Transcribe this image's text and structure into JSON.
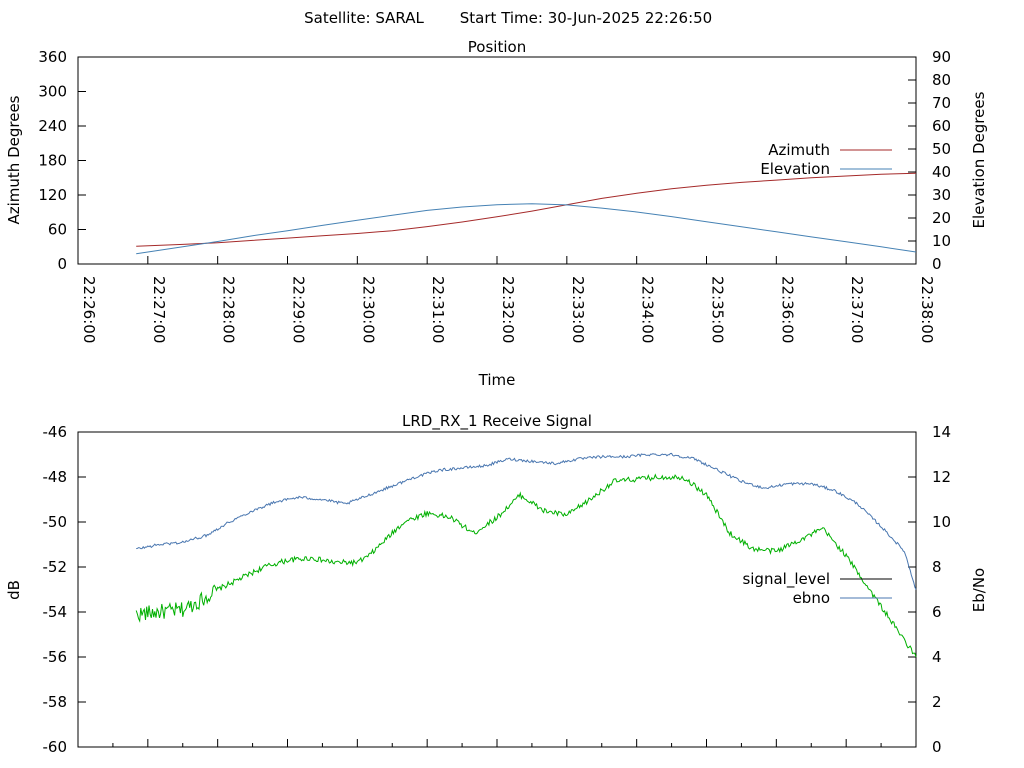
{
  "header": {
    "satellite": "Satellite: SARAL",
    "start_time": "Start Time: 30-Jun-2025 22:26:50"
  },
  "colors": {
    "azimuth": "#a52a2a",
    "elevation": "#4682b4",
    "signal_level": "#00b000",
    "ebno": "#4a77b0",
    "axis": "#000000"
  },
  "chart_data": [
    {
      "type": "line",
      "title": "Position",
      "xlabel": "Time",
      "ylabel": "Azimuth Degrees",
      "y2label": "Elevation Degrees",
      "xlim": [
        "22:26:00",
        "22:38:00"
      ],
      "ylim": [
        0,
        360
      ],
      "y2lim": [
        0,
        90
      ],
      "x_ticks": [
        "22:26:00",
        "22:27:00",
        "22:28:00",
        "22:29:00",
        "22:30:00",
        "22:31:00",
        "22:32:00",
        "22:33:00",
        "22:34:00",
        "22:35:00",
        "22:36:00",
        "22:37:00",
        "22:38:00"
      ],
      "y_ticks": [
        "0",
        "60",
        "120",
        "180",
        "240",
        "300",
        "360"
      ],
      "y2_ticks": [
        "0",
        "10",
        "20",
        "30",
        "40",
        "50",
        "60",
        "70",
        "80",
        "90"
      ],
      "legend_position": "right",
      "series": [
        {
          "name": "Azimuth",
          "axis": "y",
          "x": [
            "22:26:50",
            "22:27:30",
            "22:28:00",
            "22:28:30",
            "22:29:00",
            "22:29:30",
            "22:30:00",
            "22:30:30",
            "22:31:00",
            "22:31:30",
            "22:32:00",
            "22:32:30",
            "22:33:00",
            "22:33:30",
            "22:34:00",
            "22:34:30",
            "22:35:00",
            "22:35:30",
            "22:36:00",
            "22:36:30",
            "22:37:00",
            "22:37:30",
            "22:38:00"
          ],
          "values": [
            31,
            34,
            37,
            41,
            45,
            49,
            53,
            58,
            65,
            73,
            82,
            92,
            103,
            114,
            123,
            131,
            137,
            142,
            146,
            150,
            153,
            156,
            158
          ]
        },
        {
          "name": "Elevation",
          "axis": "y2",
          "x": [
            "22:26:50",
            "22:27:30",
            "22:28:00",
            "22:28:30",
            "22:29:00",
            "22:29:30",
            "22:30:00",
            "22:30:30",
            "22:31:00",
            "22:31:30",
            "22:32:00",
            "22:32:30",
            "22:33:00",
            "22:33:30",
            "22:34:00",
            "22:34:30",
            "22:35:00",
            "22:35:30",
            "22:36:00",
            "22:36:30",
            "22:37:00",
            "22:37:30",
            "22:38:00"
          ],
          "values": [
            4.5,
            7.5,
            9.8,
            12.3,
            14.5,
            16.8,
            19,
            21.2,
            23.3,
            24.8,
            25.8,
            26.2,
            25.7,
            24.3,
            22.6,
            20.6,
            18.4,
            16.2,
            14,
            11.8,
            9.7,
            7.5,
            5.2
          ]
        }
      ]
    },
    {
      "type": "line",
      "title": "LRD_RX_1 Receive Signal",
      "xlabel": "",
      "ylabel": "dB",
      "y2label": "Eb/No",
      "xlim": [
        "22:26:00",
        "22:38:00"
      ],
      "ylim": [
        -60,
        -46
      ],
      "y2lim": [
        0,
        14
      ],
      "y_ticks": [
        "-60",
        "-58",
        "-56",
        "-54",
        "-52",
        "-50",
        "-48",
        "-46"
      ],
      "y2_ticks": [
        "0",
        "2",
        "4",
        "6",
        "8",
        "10",
        "12",
        "14"
      ],
      "legend_position": "right",
      "series": [
        {
          "name": "signal_level",
          "axis": "y",
          "x": [
            "22:26:50",
            "22:27:10",
            "22:27:30",
            "22:27:45",
            "22:28:00",
            "22:28:20",
            "22:28:40",
            "22:29:00",
            "22:29:20",
            "22:29:40",
            "22:30:00",
            "22:30:10",
            "22:30:20",
            "22:30:40",
            "22:31:00",
            "22:31:20",
            "22:31:40",
            "22:32:00",
            "22:32:20",
            "22:32:40",
            "22:33:00",
            "22:33:20",
            "22:33:40",
            "22:34:00",
            "22:34:20",
            "22:34:40",
            "22:35:00",
            "22:35:20",
            "22:35:40",
            "22:36:00",
            "22:36:20",
            "22:36:40",
            "22:37:00",
            "22:37:20",
            "22:37:40",
            "22:38:00"
          ],
          "values": [
            -54.1,
            -54.0,
            -53.9,
            -53.5,
            -53.0,
            -52.5,
            -52.0,
            -51.7,
            -51.6,
            -51.8,
            -51.8,
            -51.5,
            -51.0,
            -50.0,
            -49.6,
            -49.8,
            -50.5,
            -49.8,
            -48.8,
            -49.5,
            -49.7,
            -49.0,
            -48.2,
            -48.1,
            -48.0,
            -48.0,
            -48.8,
            -50.5,
            -51.2,
            -51.3,
            -50.8,
            -50.3,
            -51.5,
            -53.0,
            -54.5,
            -56.0
          ]
        },
        {
          "name": "ebno",
          "axis": "y2",
          "x": [
            "22:26:50",
            "22:27:10",
            "22:27:30",
            "22:27:50",
            "22:28:10",
            "22:28:30",
            "22:28:50",
            "22:29:10",
            "22:29:30",
            "22:29:50",
            "22:30:10",
            "22:30:30",
            "22:30:50",
            "22:31:10",
            "22:31:30",
            "22:31:50",
            "22:32:10",
            "22:32:30",
            "22:32:50",
            "22:33:10",
            "22:33:30",
            "22:33:50",
            "22:34:10",
            "22:34:30",
            "22:34:50",
            "22:35:10",
            "22:35:30",
            "22:35:50",
            "22:36:10",
            "22:36:30",
            "22:36:50",
            "22:37:10",
            "22:37:30",
            "22:37:50",
            "22:38:00"
          ],
          "values": [
            8.8,
            9.0,
            9.1,
            9.4,
            10.0,
            10.5,
            10.9,
            11.1,
            11.0,
            10.8,
            11.2,
            11.6,
            12.0,
            12.3,
            12.4,
            12.5,
            12.8,
            12.7,
            12.6,
            12.8,
            12.9,
            12.9,
            13.0,
            13.0,
            12.8,
            12.3,
            11.8,
            11.5,
            11.7,
            11.7,
            11.4,
            10.8,
            9.8,
            8.7,
            7.0
          ]
        }
      ]
    }
  ]
}
